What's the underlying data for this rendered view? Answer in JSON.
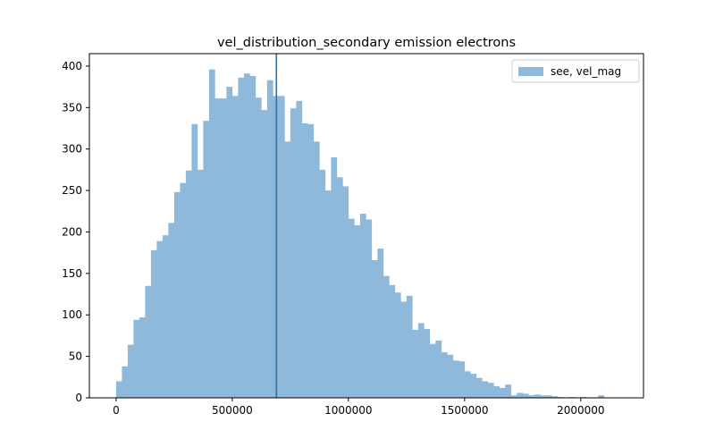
{
  "chart_data": {
    "type": "bar",
    "title": "vel_distribution_secondary emission electrons",
    "xlabel": "",
    "ylabel": "",
    "xlim": [
      -115000,
      2270000
    ],
    "ylim": [
      0,
      415
    ],
    "xticks": [
      0,
      500000,
      1000000,
      1500000,
      2000000
    ],
    "yticks": [
      0,
      50,
      100,
      150,
      200,
      250,
      300,
      350,
      400
    ],
    "bin_start": 0,
    "bin_width": 25000,
    "series": [
      {
        "name": "see, vel_mag",
        "color": "#8fb9da",
        "values": [
          20,
          38,
          64,
          94,
          97,
          135,
          178,
          189,
          196,
          211,
          248,
          259,
          274,
          330,
          275,
          334,
          396,
          361,
          361,
          375,
          364,
          386,
          391,
          388,
          362,
          347,
          383,
          364,
          364,
          309,
          349,
          358,
          331,
          330,
          309,
          275,
          250,
          290,
          266,
          255,
          216,
          208,
          222,
          215,
          166,
          180,
          147,
          136,
          127,
          116,
          123,
          82,
          90,
          83,
          65,
          69,
          55,
          52,
          45,
          44,
          32,
          29,
          24,
          20,
          18,
          14,
          12,
          16,
          3,
          6,
          5,
          3,
          4,
          3,
          3,
          2,
          1,
          0,
          1,
          0,
          1,
          0,
          0,
          3
        ]
      }
    ],
    "vline": {
      "x": 690000,
      "color": "#1f77b4"
    },
    "legend": {
      "loc": "upper right"
    }
  }
}
